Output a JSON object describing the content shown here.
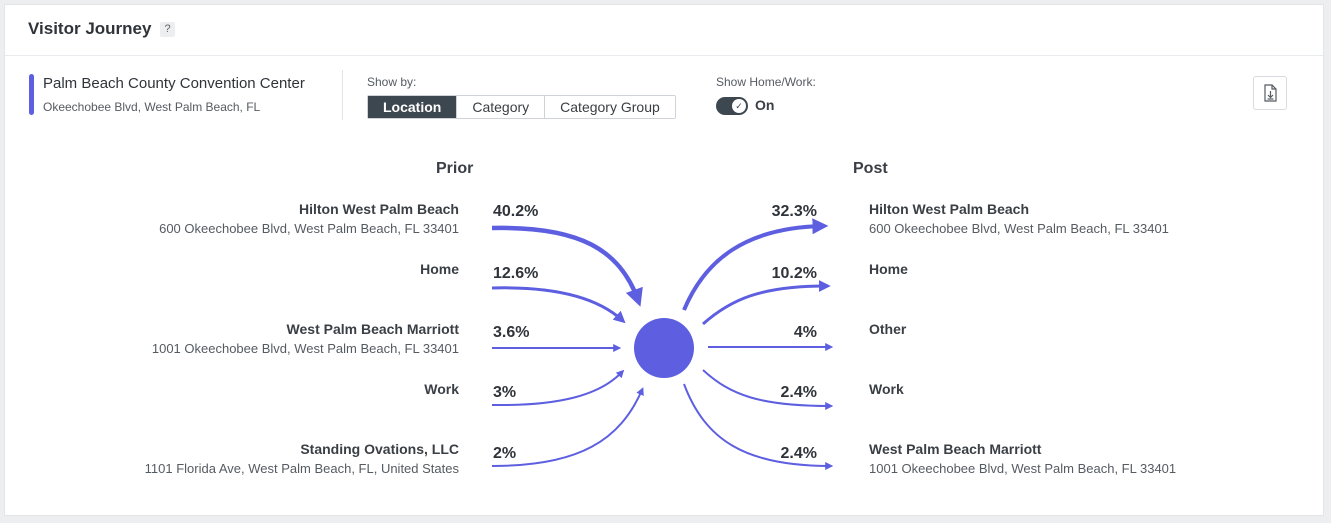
{
  "header": {
    "title": "Visitor Journey",
    "help": "?"
  },
  "location": {
    "name": "Palm Beach County Convention Center",
    "address": "Okeechobee Blvd, West Palm Beach, FL"
  },
  "show_by": {
    "label": "Show by:",
    "options": [
      "Location",
      "Category",
      "Category Group"
    ],
    "selected": "Location"
  },
  "home_work": {
    "label": "Show Home/Work:",
    "state": "On",
    "enabled": true
  },
  "colors": {
    "accent": "#5d5fe0",
    "active_segment": "#3d4750"
  },
  "journey": {
    "prior_label": "Prior",
    "post_label": "Post",
    "prior": [
      {
        "name": "Hilton West Palm Beach",
        "address": "600 Okeechobee Blvd, West Palm Beach, FL 33401",
        "pct": "40.2%"
      },
      {
        "name": "Home",
        "address": "",
        "pct": "12.6%"
      },
      {
        "name": "West Palm Beach Marriott",
        "address": "1001 Okeechobee Blvd, West Palm Beach, FL 33401",
        "pct": "3.6%"
      },
      {
        "name": "Work",
        "address": "",
        "pct": "3%"
      },
      {
        "name": "Standing Ovations, LLC",
        "address": "1101 Florida Ave, West Palm Beach, FL, United States",
        "pct": "2%"
      }
    ],
    "post": [
      {
        "name": "Hilton West Palm Beach",
        "address": "600 Okeechobee Blvd, West Palm Beach, FL 33401",
        "pct": "32.3%"
      },
      {
        "name": "Home",
        "address": "",
        "pct": "10.2%"
      },
      {
        "name": "Other",
        "address": "",
        "pct": "4%"
      },
      {
        "name": "Work",
        "address": "",
        "pct": "2.4%"
      },
      {
        "name": "West Palm Beach Marriott",
        "address": "1001 Okeechobee Blvd, West Palm Beach, FL 33401",
        "pct": "2.4%"
      }
    ]
  }
}
